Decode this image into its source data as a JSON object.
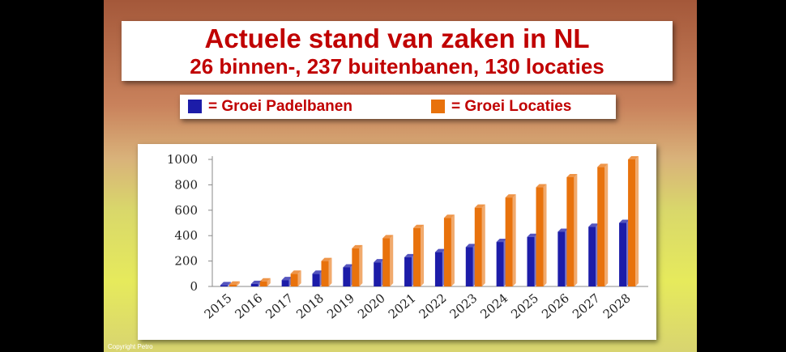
{
  "chart_data": {
    "type": "bar",
    "title": "Actuele stand van zaken in NL",
    "subtitle": "26 binnen-, 237 buitenbanen, 130 locaties",
    "categories": [
      "2015",
      "2016",
      "2017",
      "2018",
      "2019",
      "2020",
      "2021",
      "2022",
      "2023",
      "2024",
      "2025",
      "2026",
      "2027",
      "2028"
    ],
    "series": [
      {
        "name": "= Groei Padelbanen",
        "color": "#1c1ca8",
        "values": [
          10,
          20,
          50,
          100,
          150,
          190,
          230,
          270,
          310,
          350,
          390,
          430,
          470,
          500
        ]
      },
      {
        "name": "= Groei Locaties",
        "color": "#e8720c",
        "values": [
          15,
          40,
          100,
          200,
          300,
          380,
          460,
          540,
          620,
          700,
          780,
          860,
          940,
          1000
        ]
      }
    ],
    "ylim": [
      0,
      1000
    ],
    "yticks": [
      0,
      200,
      400,
      600,
      800,
      1000
    ],
    "grid": false,
    "footer": "Copyright Petro"
  }
}
